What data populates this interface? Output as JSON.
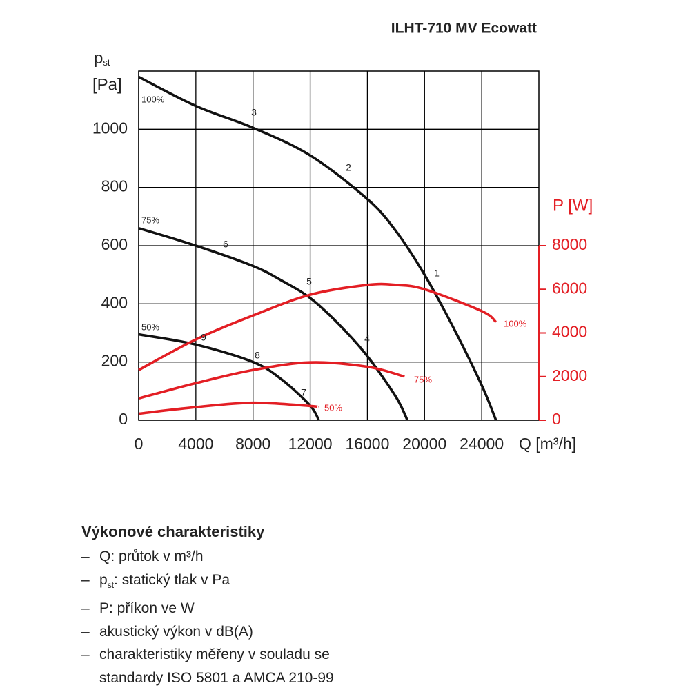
{
  "chart_data": {
    "type": "line",
    "title": "ILHT-710 MV Ecowatt",
    "ylabel": {
      "symbol": "p",
      "subscript": "st",
      "unit": "[Pa]"
    },
    "y2label": "P [W]",
    "xlabel": "Q [m³/h]",
    "xlim": [
      0,
      28000
    ],
    "xticks": [
      0,
      4000,
      8000,
      12000,
      16000,
      20000,
      24000
    ],
    "ylim": [
      0,
      1200
    ],
    "yticks": [
      0,
      200,
      400,
      600,
      800,
      1000
    ],
    "y2lim": [
      0,
      16000
    ],
    "y2ticks": [
      0,
      2000,
      4000,
      6000,
      8000
    ],
    "grid": true,
    "y2color": "#e31e24",
    "series": [
      {
        "name": "100%",
        "color": "#111111",
        "x": [
          0,
          4000,
          8000,
          12000,
          16000,
          18000,
          20000,
          22000,
          24000,
          25000
        ],
        "values": [
          1180,
          1080,
          1005,
          910,
          760,
          650,
          500,
          320,
          120,
          0
        ]
      },
      {
        "name": "75%",
        "color": "#111111",
        "x": [
          0,
          4000,
          8000,
          10000,
          12000,
          14000,
          16000,
          18000,
          18800
        ],
        "values": [
          660,
          600,
          530,
          480,
          420,
          330,
          220,
          80,
          0
        ]
      },
      {
        "name": "50%",
        "color": "#111111",
        "x": [
          0,
          4000,
          8000,
          10000,
          12000,
          12600
        ],
        "values": [
          295,
          260,
          200,
          140,
          50,
          0
        ]
      },
      {
        "name": "100%",
        "color": "#e31e24",
        "axis": "y2",
        "x": [
          0,
          4000,
          8000,
          12000,
          16000,
          18000,
          20000,
          24000,
          25000
        ],
        "values": [
          2300,
          3700,
          4800,
          5750,
          6200,
          6200,
          6000,
          5000,
          4500
        ]
      },
      {
        "name": "75%",
        "color": "#e31e24",
        "axis": "y2",
        "x": [
          0,
          4000,
          8000,
          12000,
          16000,
          18600
        ],
        "values": [
          1000,
          1700,
          2300,
          2650,
          2450,
          2000
        ]
      },
      {
        "name": "50%",
        "color": "#e31e24",
        "axis": "y2",
        "x": [
          0,
          4000,
          8000,
          12000,
          12500
        ],
        "values": [
          300,
          600,
          800,
          650,
          600
        ]
      }
    ],
    "annotations": [
      "1",
      "2",
      "3",
      "4",
      "5",
      "6",
      "7",
      "8",
      "9"
    ]
  },
  "notes": {
    "heading": "Výkonové charakteristiky",
    "bullet": "–",
    "items": [
      {
        "text": "Q: průtok v m³/h"
      },
      {
        "symbol": "p",
        "subscript": "st",
        "text": ": statický tlak v Pa"
      },
      {
        "text": "P: příkon ve W"
      },
      {
        "text": "akustický výkon v dB(A)"
      },
      {
        "lines": [
          "charakteristiky měřeny v souladu se",
          "standardy ISO 5801 a AMCA 210-99"
        ]
      }
    ]
  }
}
